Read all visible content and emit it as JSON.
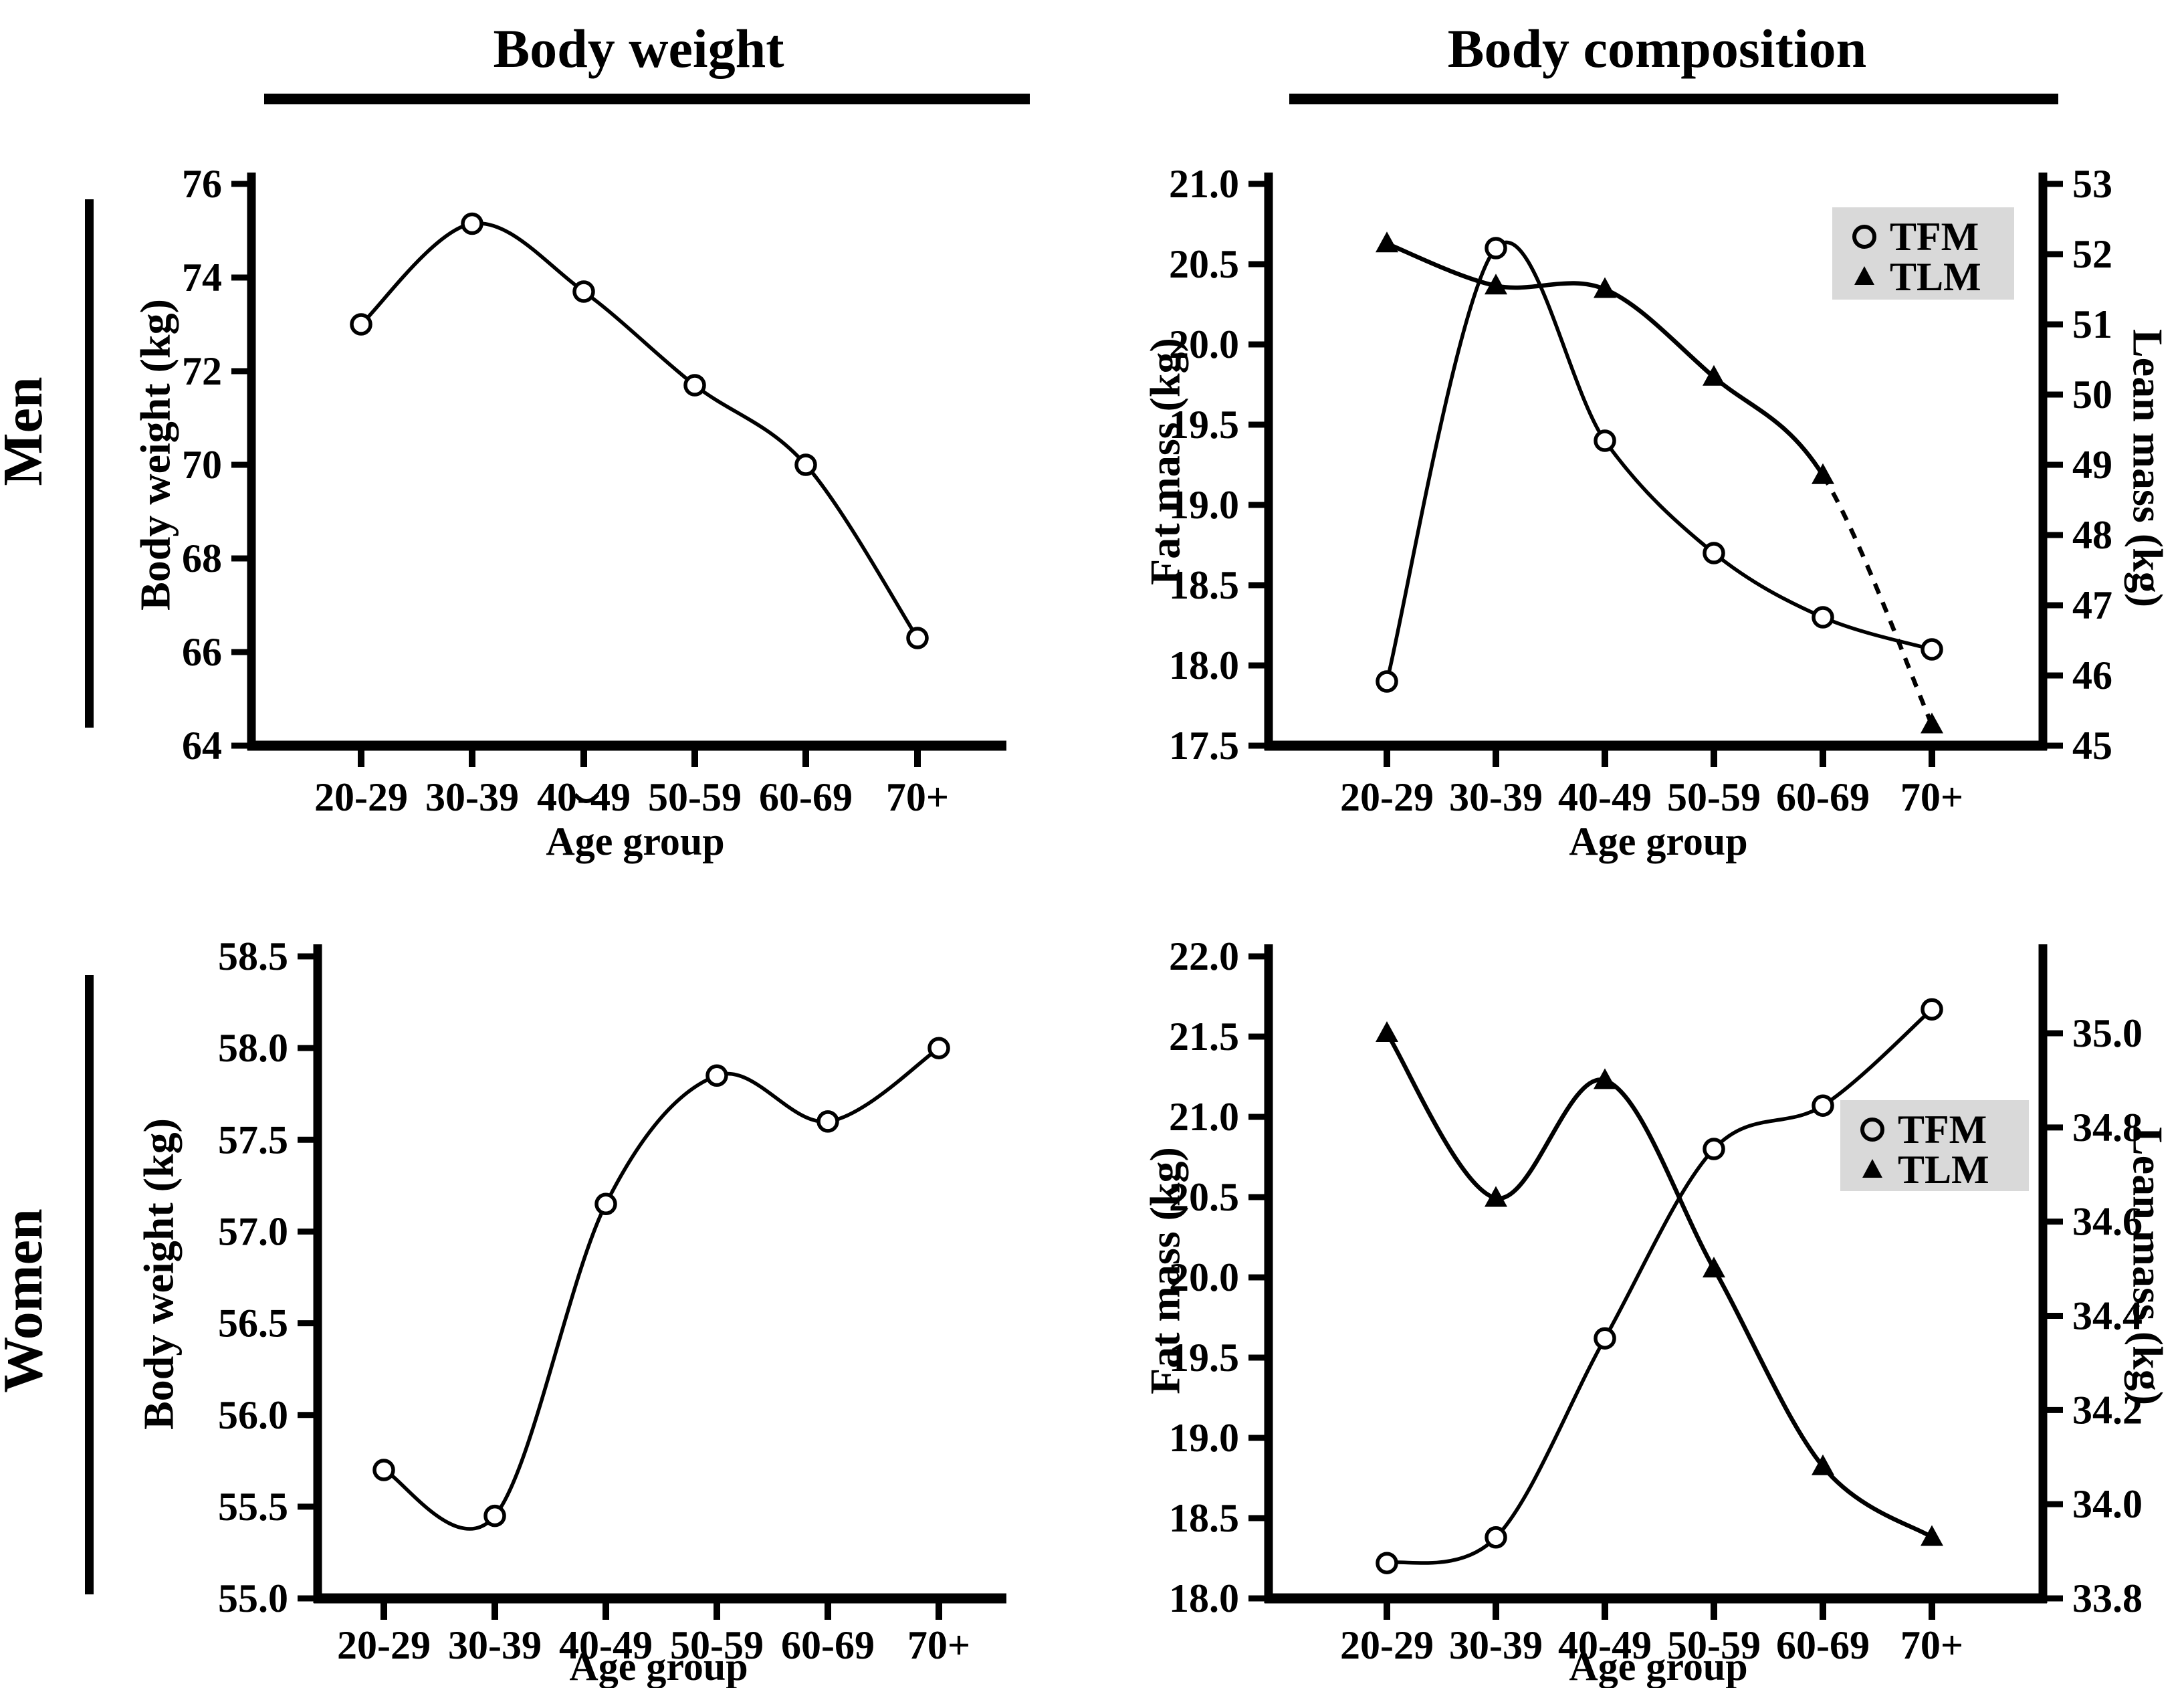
{
  "figure": {
    "column_headers": [
      {
        "title": "Body weight"
      },
      {
        "title": "Body composition"
      }
    ],
    "row_labels": [
      {
        "label": "Men"
      },
      {
        "label": "Women"
      }
    ],
    "colors": {
      "ink": "#000000",
      "legend_bg": "#d9d9d9",
      "background": "#ffffff"
    }
  },
  "chart_data": [
    {
      "id": "men-body-weight",
      "type": "line",
      "row": "Men",
      "column": "Body weight",
      "xlabel": "Age group",
      "ylabel": "Body weight (kg)",
      "categories": [
        "20-29",
        "30-39",
        "40-49",
        "50-59",
        "60-69",
        "70+"
      ],
      "ylim": [
        64,
        76
      ],
      "ytick_labels": [
        "76",
        "74",
        "72",
        "70",
        "68",
        "66",
        "64"
      ],
      "grid": false,
      "legend": null,
      "series": [
        {
          "name": "Body weight",
          "axis": "left",
          "marker": "circle",
          "line": "solid",
          "values": [
            73.0,
            75.15,
            73.7,
            71.7,
            70.0,
            66.3
          ]
        }
      ]
    },
    {
      "id": "men-body-composition",
      "type": "line",
      "row": "Men",
      "column": "Body composition",
      "xlabel": "Age group",
      "ylabel_left": "Fat mass (kg)",
      "ylabel_right": "Lean mass (kg)",
      "categories": [
        "20-29",
        "30-39",
        "40-49",
        "50-59",
        "60-69",
        "70+"
      ],
      "ylim_left": [
        17.5,
        21.0
      ],
      "ytick_labels_left": [
        "21.0",
        "20.5",
        "20.0",
        "19.5",
        "19.0",
        "18.5",
        "18.0",
        "17.5"
      ],
      "ylim_right": [
        45,
        53
      ],
      "ytick_labels_right": [
        "53",
        "52",
        "51",
        "50",
        "49",
        "48",
        "47",
        "46",
        "45"
      ],
      "grid": false,
      "legend": {
        "position": "upper-right",
        "items": [
          {
            "label": "TFM",
            "marker": "circle"
          },
          {
            "label": "TLM",
            "marker": "triangle"
          }
        ]
      },
      "series": [
        {
          "name": "TFM",
          "axis": "left",
          "marker": "circle",
          "line": "solid",
          "values": [
            17.9,
            20.6,
            19.4,
            18.7,
            18.3,
            18.1
          ]
        },
        {
          "name": "TLM",
          "axis": "right",
          "marker": "triangle",
          "line": "solid",
          "dashed_from": 4,
          "values": [
            52.15,
            51.55,
            51.5,
            50.25,
            48.85,
            45.3
          ]
        }
      ]
    },
    {
      "id": "women-body-weight",
      "type": "line",
      "row": "Women",
      "column": "Body weight",
      "xlabel": "Age group",
      "ylabel": "Body weight (kg)",
      "categories": [
        "20-29",
        "30-39",
        "40-49",
        "50-59",
        "60-69",
        "70+"
      ],
      "ylim": [
        55.0,
        58.5
      ],
      "ytick_labels": [
        "58.5",
        "58.0",
        "57.5",
        "57.0",
        "56.5",
        "56.0",
        "55.5",
        "55.0"
      ],
      "grid": false,
      "legend": null,
      "series": [
        {
          "name": "Body weight",
          "axis": "left",
          "marker": "circle",
          "line": "solid",
          "values": [
            55.7,
            55.45,
            57.15,
            57.85,
            57.6,
            58.0
          ]
        }
      ]
    },
    {
      "id": "women-body-composition",
      "type": "line",
      "row": "Women",
      "column": "Body composition",
      "xlabel": "Age group",
      "ylabel_left": "Fat mass (kg)",
      "ylabel_right": "Lean mass (kg)",
      "categories": [
        "20-29",
        "30-39",
        "40-49",
        "50-59",
        "60-69",
        "70+"
      ],
      "ylim_left": [
        18.0,
        22.0
      ],
      "ytick_labels_left": [
        "22.0",
        "21.5",
        "21.0",
        "20.5",
        "20.0",
        "19.5",
        "19.0",
        "18.5",
        "18.0"
      ],
      "ylim_right": [
        33.8,
        35.0
      ],
      "ytick_labels_right": [
        "35.0",
        "34.8",
        "34.6",
        "34.4",
        "34.2",
        "34.0",
        "33.8"
      ],
      "grid": false,
      "legend": {
        "position": "middle-right",
        "items": [
          {
            "label": "TFM",
            "marker": "circle"
          },
          {
            "label": "TLM",
            "marker": "triangle"
          }
        ]
      },
      "series": [
        {
          "name": "TFM",
          "axis": "left",
          "marker": "circle",
          "line": "solid",
          "values": [
            18.22,
            18.38,
            19.62,
            20.8,
            21.07,
            21.67
          ]
        },
        {
          "name": "TLM",
          "axis": "right",
          "marker": "triangle",
          "line": "solid",
          "values": [
            35.0,
            34.65,
            34.9,
            34.5,
            34.08,
            33.93
          ]
        }
      ]
    }
  ]
}
